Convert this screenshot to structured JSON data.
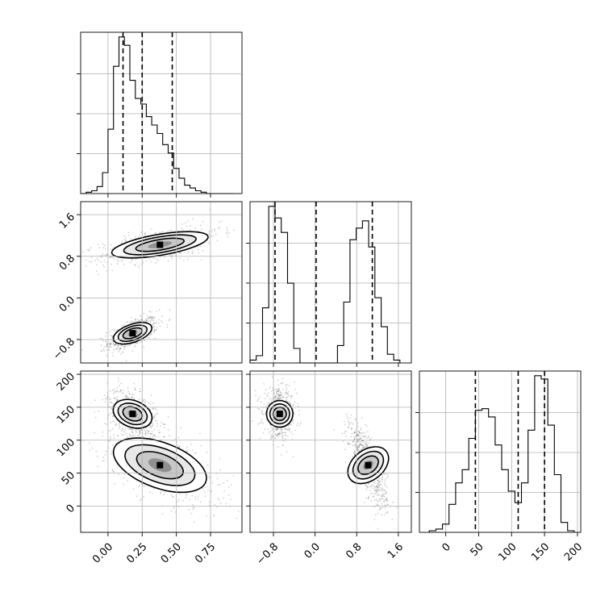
{
  "chart_data": {
    "type": "corner",
    "parameters": [
      {
        "ticks": [
          0.0,
          0.25,
          0.5,
          0.75
        ],
        "tick_labels": [
          "0.00",
          "0.25",
          "0.50",
          "0.75"
        ],
        "range": [
          -0.2,
          0.98
        ],
        "quantiles": [
          0.11,
          0.25,
          0.47
        ],
        "histogram": {
          "edges": [
            -0.2,
            -0.16,
            -0.12,
            -0.08,
            -0.04,
            0.0,
            0.04,
            0.08,
            0.12,
            0.16,
            0.2,
            0.24,
            0.28,
            0.32,
            0.36,
            0.4,
            0.44,
            0.48,
            0.52,
            0.56,
            0.6,
            0.64,
            0.68,
            0.72,
            0.76,
            0.8,
            0.84,
            0.88,
            0.92
          ],
          "counts": [
            0,
            1,
            2,
            5,
            15,
            46,
            91,
            112,
            106,
            81,
            68,
            64,
            55,
            49,
            43,
            35,
            29,
            18,
            11,
            6,
            4,
            2,
            1,
            0,
            0,
            0,
            0,
            0
          ]
        }
      },
      {
        "ticks": [
          -0.8,
          0.0,
          0.8,
          1.6
        ],
        "tick_labels": [
          "−0.8",
          "0.0",
          "0.8",
          "1.6"
        ],
        "range": [
          -1.25,
          1.85
        ],
        "quantiles": [
          -0.77,
          0.02,
          1.1
        ],
        "histogram": {
          "edges": [
            -1.25,
            -1.13,
            -1.01,
            -0.89,
            -0.77,
            -0.65,
            -0.53,
            -0.41,
            -0.29,
            -0.17,
            -0.05,
            0.07,
            0.19,
            0.31,
            0.43,
            0.55,
            0.67,
            0.79,
            0.91,
            1.03,
            1.15,
            1.27,
            1.39,
            1.51,
            1.63
          ],
          "counts": [
            2,
            5,
            38,
            108,
            100,
            90,
            55,
            10,
            0,
            0,
            0,
            0,
            0,
            0,
            12,
            42,
            85,
            93,
            98,
            80,
            45,
            25,
            6,
            2
          ]
        }
      },
      {
        "ticks": [
          0,
          50,
          100,
          150,
          200
        ],
        "tick_labels": [
          "0",
          "50",
          "100",
          "150",
          "200"
        ],
        "range": [
          -40,
          205
        ],
        "quantiles": [
          45,
          110,
          150
        ],
        "histogram": {
          "edges": [
            -25,
            -15,
            -5,
            5,
            15,
            25,
            35,
            45,
            55,
            65,
            75,
            85,
            95,
            105,
            115,
            125,
            135,
            145,
            155,
            165,
            175,
            185,
            195
          ],
          "counts": [
            1,
            2,
            5,
            17,
            30,
            38,
            57,
            74,
            75,
            70,
            53,
            38,
            25,
            18,
            30,
            62,
            95,
            93,
            65,
            35,
            6,
            1
          ]
        }
      }
    ],
    "modes": [
      {
        "p0": 0.18,
        "p1": -0.68,
        "p2": 140,
        "sd": [
          0.07,
          0.12,
          14
        ],
        "weight": 0.5
      },
      {
        "p0": 0.38,
        "p1": 1.02,
        "p2": 62,
        "sd": [
          0.17,
          0.14,
          24
        ],
        "weight": 0.5
      }
    ],
    "grid": true
  }
}
